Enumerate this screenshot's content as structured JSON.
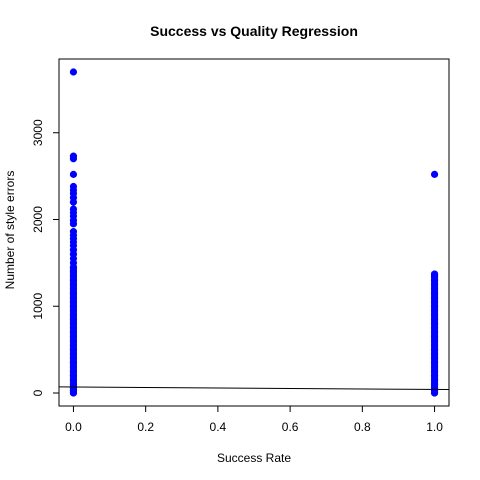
{
  "chart_data": {
    "type": "scatter",
    "title": "Success vs Quality Regression",
    "xlabel": "Success Rate",
    "ylabel": "Number of style errors",
    "xlim": [
      -0.04,
      1.04
    ],
    "ylim": [
      -150,
      3850
    ],
    "xticks": [
      0.0,
      0.2,
      0.4,
      0.6,
      0.8,
      1.0
    ],
    "xtick_labels": [
      "0.0",
      "0.2",
      "0.4",
      "0.6",
      "0.8",
      "1.0"
    ],
    "yticks": [
      0,
      1000,
      2000,
      3000
    ],
    "ytick_labels": [
      "0",
      "1000",
      "2000",
      "3000"
    ],
    "point_color": "#0000ff",
    "grid": false,
    "series": [
      {
        "x": 0.0,
        "y": [
          3700,
          2730,
          2700,
          2520,
          2380,
          2340,
          2300,
          2250,
          2200,
          2120,
          2080,
          2040,
          1990,
          1950,
          1860,
          1820,
          1780,
          1740,
          1700,
          1650,
          1600,
          1550,
          1500,
          1450,
          1400,
          1350,
          1300,
          1250,
          1200,
          1150,
          1100,
          1050,
          1000,
          950,
          900,
          850,
          800,
          750,
          700,
          650,
          600,
          550,
          500,
          450,
          400,
          350,
          300,
          250,
          200,
          150,
          100,
          60,
          30,
          0
        ]
      },
      {
        "x": 1.0,
        "y": [
          2520,
          1370,
          1340,
          1300,
          1250,
          1200,
          1150,
          1100,
          1050,
          1000,
          950,
          900,
          850,
          800,
          750,
          700,
          650,
          600,
          550,
          500,
          450,
          400,
          350,
          300,
          250,
          200,
          150,
          100,
          60,
          30,
          0
        ]
      }
    ],
    "regression_line": {
      "x": [
        -0.04,
        1.04
      ],
      "y": [
        70,
        40
      ]
    }
  }
}
